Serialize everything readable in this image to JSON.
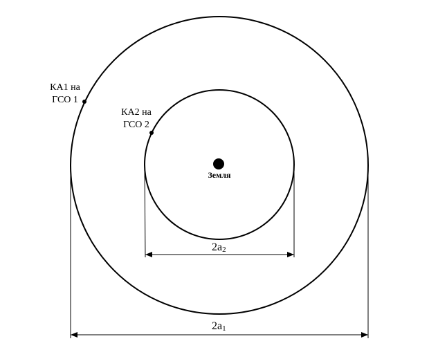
{
  "satellites": {
    "ka1_line1": "КА1 на",
    "ka1_line2": "ГСО 1",
    "ka2_line1": "КА2 на",
    "ka2_line2": "ГСО 2"
  },
  "earth_label": "Земля",
  "dimensions": {
    "inner_main": "2a",
    "inner_sub": "2",
    "outer_main": "2a",
    "outer_sub": "1"
  }
}
